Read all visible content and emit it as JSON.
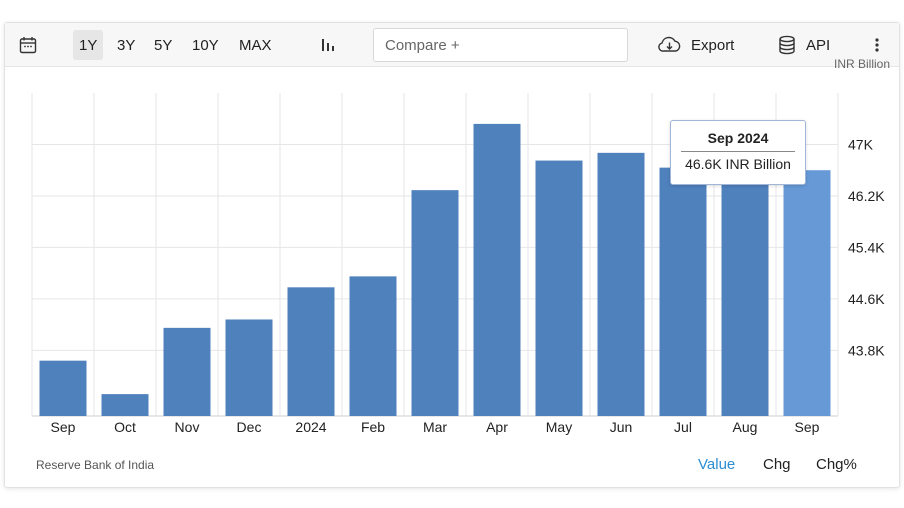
{
  "toolbar": {
    "calendar_icon": "calendar-icon",
    "ranges": [
      "1Y",
      "3Y",
      "5Y",
      "10Y",
      "MAX"
    ],
    "active_range": "1Y",
    "chart_type_icon": "bar-chart-icon",
    "compare_placeholder": "Compare +",
    "export_label": "Export",
    "export_icon": "cloud-download-icon",
    "api_label": "API",
    "api_icon": "database-icon",
    "more_icon": "vertical-ellipsis-icon"
  },
  "unit_label": "INR Billion",
  "tooltip": {
    "title": "Sep 2024",
    "value": "46.6K INR Billion"
  },
  "footer": {
    "source": "Reserve Bank of India",
    "modes": [
      "Value",
      "Chg",
      "Chg%"
    ],
    "active_mode": "Value"
  },
  "colors": {
    "bar": "#4f81bd",
    "bar_highlight": "#6699d6",
    "accent": "#2a8ed4",
    "grid": "#e6e6e6"
  },
  "chart_data": {
    "type": "bar",
    "categories": [
      "Sep",
      "Oct",
      "Nov",
      "Dec",
      "2024",
      "Feb",
      "Mar",
      "Apr",
      "May",
      "Jun",
      "Jul",
      "Aug",
      "Sep"
    ],
    "values": [
      43.64,
      43.12,
      44.15,
      44.28,
      44.78,
      44.95,
      46.29,
      47.32,
      46.75,
      46.87,
      46.64,
      46.57,
      46.6
    ],
    "highlight_index": 12,
    "y_ticks": [
      "43.8K",
      "44.6K",
      "45.4K",
      "46.2K",
      "47K"
    ],
    "y_tick_values": [
      43.8,
      44.6,
      45.4,
      46.2,
      47.0
    ],
    "ylim": [
      42.78,
      47.8
    ],
    "grid": true,
    "y_axis_side": "right"
  }
}
